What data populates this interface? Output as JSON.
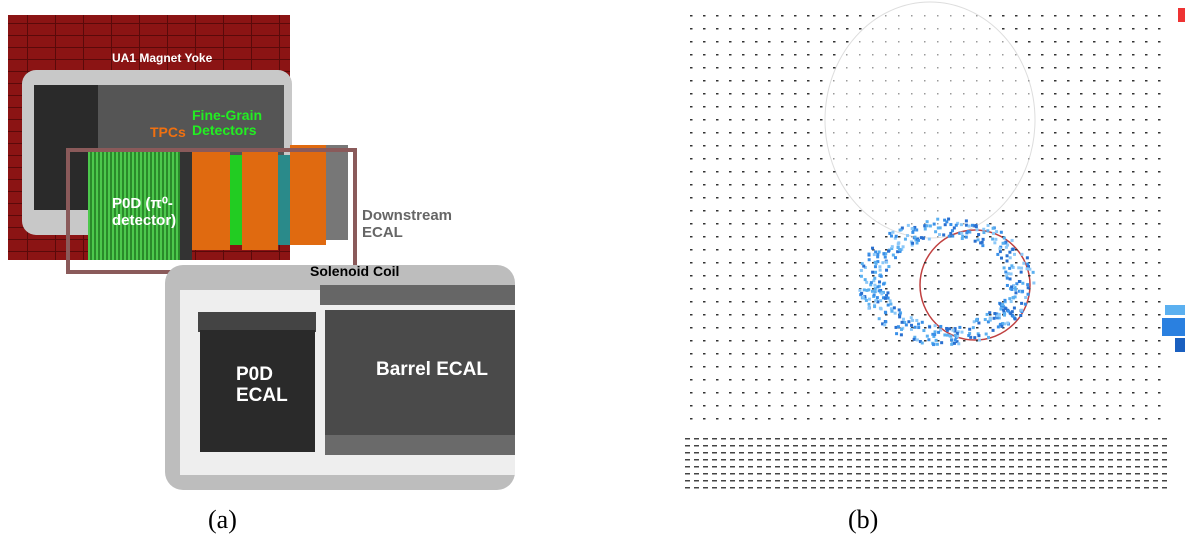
{
  "panels": [
    {
      "caption": "(a)",
      "labels": {
        "yoke": "UA1 Magnet Yoke",
        "fgd": "Fine-Grain Detectors",
        "tpc": "TPCs",
        "p0d": "P0D (π⁰-detector)",
        "decal": "Downstream ECAL",
        "coil": "Solenoid Coil",
        "p0decal": "P0D ECAL",
        "becal": "Barrel ECAL"
      }
    },
    {
      "caption": "(b)"
    }
  ]
}
